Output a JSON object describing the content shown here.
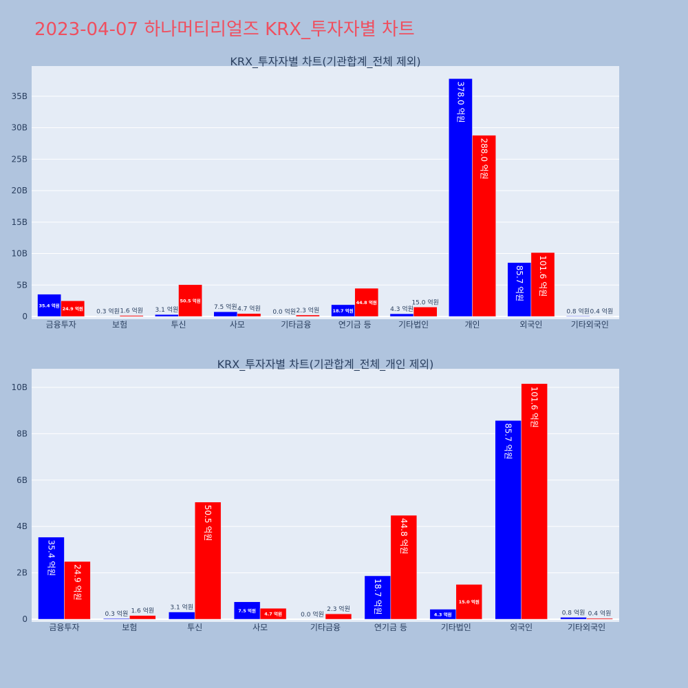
{
  "page": {
    "title": "2023-04-07 하나머티리얼즈 KRX_투자자별 차트"
  },
  "colors": {
    "buy": "#0000ff",
    "sell": "#ff0000",
    "plot_bg": "#e5ecf6",
    "paper_bg": "#b0c4de",
    "title": "#ef4f5f"
  },
  "chart_data": [
    {
      "type": "bar",
      "title": "KRX_투자자별 차트(기관합계_전체 제외)",
      "categories": [
        "금융투자",
        "보험",
        "투신",
        "사모",
        "기타금융",
        "연기금 등",
        "기타법인",
        "개인",
        "외국인",
        "기타외국인"
      ],
      "series": [
        {
          "values": [
            3.54,
            0.03,
            0.31,
            0.75,
            0.0,
            1.87,
            0.43,
            37.8,
            8.57,
            0.08
          ],
          "labels": [
            "35.4 억원",
            "0.3 억원",
            "3.1 억원",
            "7.5 억원",
            "0.0 억원",
            "18.7 억원",
            "4.3 억원",
            "378.0 억원",
            "85.7 억원",
            "0.8 억원"
          ]
        },
        {
          "values": [
            2.49,
            0.16,
            5.05,
            0.47,
            0.23,
            4.48,
            1.5,
            28.8,
            10.16,
            0.04
          ],
          "labels": [
            "24.9 억원",
            "1.6 억원",
            "50.5 억원",
            "4.7 억원",
            "2.3 억원",
            "44.8 억원",
            "15.0 억원",
            "288.0 억원",
            "101.6 억원",
            "0.4 억원"
          ]
        }
      ],
      "yticks": [
        0,
        5,
        10,
        15,
        20,
        25,
        30,
        35
      ],
      "ytick_labels": [
        "0",
        "5B",
        "10B",
        "15B",
        "20B",
        "25B",
        "30B",
        "35B"
      ],
      "ylim": [
        0,
        39.8
      ],
      "grid": true
    },
    {
      "type": "bar",
      "title": "KRX_투자자별 차트(기관합계_전체_개인 제외)",
      "categories": [
        "금융투자",
        "보험",
        "투신",
        "사모",
        "기타금융",
        "연기금 등",
        "기타법인",
        "외국인",
        "기타외국인"
      ],
      "series": [
        {
          "values": [
            3.54,
            0.03,
            0.31,
            0.75,
            0.0,
            1.87,
            0.43,
            8.57,
            0.08
          ],
          "labels": [
            "35.4 억원",
            "0.3 억원",
            "3.1 억원",
            "7.5 억원",
            "0.0 억원",
            "18.7 억원",
            "4.3 억원",
            "85.7 억원",
            "0.8 억원"
          ]
        },
        {
          "values": [
            2.49,
            0.16,
            5.05,
            0.47,
            0.23,
            4.48,
            1.5,
            10.16,
            0.04
          ],
          "labels": [
            "24.9 억원",
            "1.6 억원",
            "50.5 억원",
            "4.7 억원",
            "2.3 억원",
            "44.8 억원",
            "15.0 억원",
            "101.6 억원",
            "0.4 억원"
          ]
        }
      ],
      "yticks": [
        0,
        2,
        4,
        6,
        8,
        10
      ],
      "ytick_labels": [
        "0",
        "2B",
        "4B",
        "6B",
        "8B",
        "10B"
      ],
      "ylim": [
        0,
        10.8
      ],
      "grid": true
    }
  ]
}
